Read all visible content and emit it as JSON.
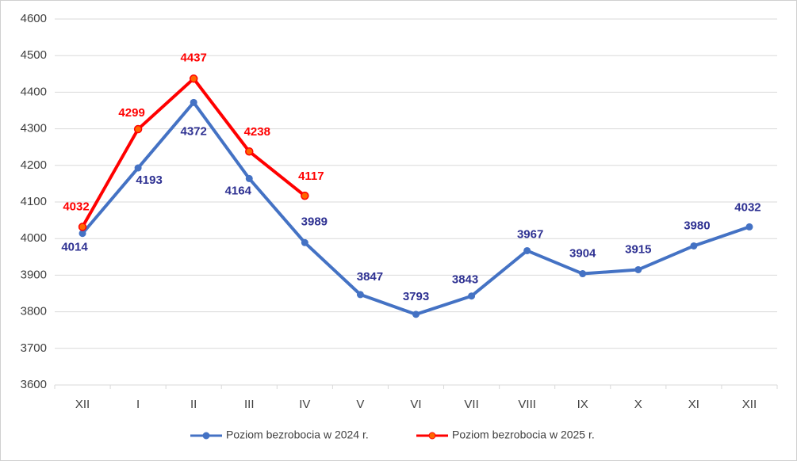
{
  "chart_data": {
    "type": "line",
    "categories": [
      "XII",
      "I",
      "II",
      "III",
      "IV",
      "V",
      "VI",
      "VII",
      "VIII",
      "IX",
      "X",
      "XI",
      "XII"
    ],
    "series": [
      {
        "name": "Poziom bezrobocia w 2024 r.",
        "color": "#4472c4",
        "label_color": "#2e3192",
        "values": [
          4014,
          4193,
          4372,
          4164,
          3989,
          3847,
          3793,
          3843,
          3967,
          3904,
          3915,
          3980,
          4032
        ]
      },
      {
        "name": "Poziom bezrobocia w 2025 r.",
        "color": "#ff0000",
        "label_color": "#ff0000",
        "values": [
          4032,
          4299,
          4437,
          4238,
          4117,
          null,
          null,
          null,
          null,
          null,
          null,
          null,
          null
        ]
      }
    ],
    "ylim": [
      3600,
      4600
    ],
    "yticks": [
      3600,
      3700,
      3800,
      3900,
      4000,
      4100,
      4200,
      4300,
      4400,
      4500,
      4600
    ],
    "grid": true,
    "legend": "bottom"
  }
}
